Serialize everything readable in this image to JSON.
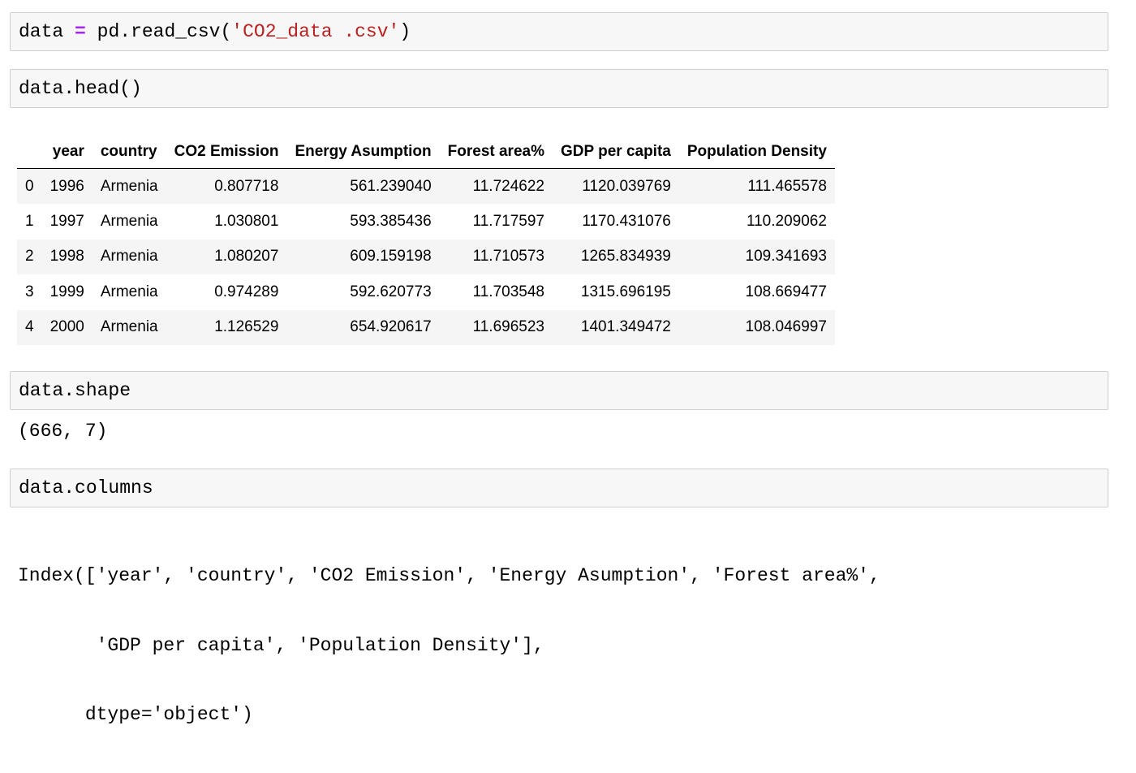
{
  "cells": [
    {
      "code": {
        "var": "data",
        "op": "=",
        "call": "pd.read_csv(",
        "str": "'CO2_data .csv'",
        "close": ")"
      }
    },
    {
      "code": {
        "expr": "data.head",
        "parens": "()"
      }
    },
    {
      "code": {
        "expr": "data.shape"
      },
      "output": "(666, 7)"
    },
    {
      "code": {
        "expr": "data.columns"
      },
      "output_lines": [
        "Index(['year', 'country', 'CO2 Emission', 'Energy Asumption', 'Forest area%',",
        "       'GDP per capita', 'Population Density'],",
        "      dtype='object')"
      ]
    }
  ],
  "dataframe": {
    "columns": [
      "year",
      "country",
      "CO2 Emission",
      "Energy Asumption",
      "Forest area%",
      "GDP per capita",
      "Population Density"
    ],
    "rows": [
      {
        "index": "0",
        "values": [
          "1996",
          "Armenia",
          "0.807718",
          "561.239040",
          "11.724622",
          "1120.039769",
          "111.465578"
        ]
      },
      {
        "index": "1",
        "values": [
          "1997",
          "Armenia",
          "1.030801",
          "593.385436",
          "11.717597",
          "1170.431076",
          "110.209062"
        ]
      },
      {
        "index": "2",
        "values": [
          "1998",
          "Armenia",
          "1.080207",
          "609.159198",
          "11.710573",
          "1265.834939",
          "109.341693"
        ]
      },
      {
        "index": "3",
        "values": [
          "1999",
          "Armenia",
          "0.974289",
          "592.620773",
          "11.703548",
          "1315.696195",
          "108.669477"
        ]
      },
      {
        "index": "4",
        "values": [
          "2000",
          "Armenia",
          "1.126529",
          "654.920617",
          "11.696523",
          "1401.349472",
          "108.046997"
        ]
      }
    ]
  },
  "colors": {
    "cell_background": "#f7f7f7",
    "cell_border": "#cfcfcf",
    "operator": "#aa22ff",
    "string": "#ba2121",
    "striped_row": "#f5f5f5"
  }
}
